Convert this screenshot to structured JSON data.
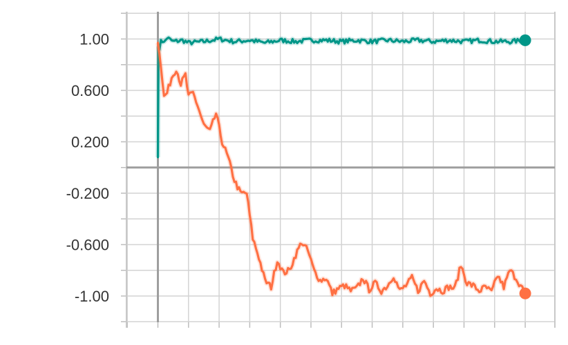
{
  "chart_data": {
    "type": "line",
    "title": "",
    "xlabel": "",
    "ylabel": "",
    "xlim": [
      -1,
      13
    ],
    "ylim": [
      -1.2,
      1.2
    ],
    "y_ticks": [
      1.0,
      0.6,
      0.2,
      -0.2,
      -0.6,
      -1.0
    ],
    "y_tick_labels": [
      "1.00",
      "0.600",
      "0.200",
      "-0.200",
      "-0.600",
      "-1.00"
    ],
    "grid": true,
    "legend": "none",
    "series": [
      {
        "color": "#009688",
        "x": [
          0,
          0.02,
          0.05,
          0.1,
          0.2,
          0.3,
          0.5,
          0.8,
          1,
          1.5,
          2,
          2.5,
          3,
          3.5,
          4,
          4.5,
          5,
          5.5,
          6,
          6.5,
          7,
          7.5,
          8,
          8.5,
          9,
          9.5,
          10,
          10.5,
          11,
          11.5,
          12
        ],
        "y": [
          0.08,
          0.95,
          0.9,
          1.0,
          0.97,
          1.01,
          0.98,
          0.99,
          0.97,
          0.98,
          1.0,
          0.98,
          0.99,
          0.97,
          0.99,
          0.98,
          0.99,
          0.99,
          0.98,
          0.99,
          0.98,
          0.99,
          0.98,
          0.99,
          0.98,
          0.99,
          0.98,
          0.99,
          0.98,
          0.98,
          0.99
        ]
      },
      {
        "color": "#ff7043",
        "x": [
          0,
          0.05,
          0.1,
          0.2,
          0.3,
          0.45,
          0.6,
          0.75,
          0.9,
          1,
          1.15,
          1.3,
          1.5,
          1.7,
          1.9,
          2.1,
          2.3,
          2.5,
          2.7,
          2.9,
          3.1,
          3.3,
          3.5,
          3.7,
          3.9,
          4.1,
          4.3,
          4.5,
          4.7,
          4.9,
          5.1,
          5.3,
          5.5,
          5.7,
          5.9,
          6.1,
          6.3,
          6.5,
          6.7,
          6.9,
          7.1,
          7.3,
          7.5,
          7.7,
          7.9,
          8.1,
          8.3,
          8.5,
          8.7,
          8.9,
          9.1,
          9.3,
          9.5,
          9.7,
          9.9,
          10.1,
          10.3,
          10.5,
          10.7,
          10.9,
          11.1,
          11.3,
          11.5,
          11.7,
          11.9,
          12
        ],
        "y": [
          0.97,
          0.9,
          0.8,
          0.55,
          0.58,
          0.7,
          0.77,
          0.65,
          0.72,
          0.55,
          0.58,
          0.48,
          0.33,
          0.28,
          0.42,
          0.2,
          0.07,
          -0.1,
          -0.2,
          -0.2,
          -0.55,
          -0.7,
          -0.88,
          -0.93,
          -0.72,
          -0.82,
          -0.8,
          -0.68,
          -0.58,
          -0.65,
          -0.8,
          -0.88,
          -0.86,
          -0.98,
          -0.94,
          -0.92,
          -0.96,
          -0.94,
          -0.86,
          -0.95,
          -0.9,
          -0.96,
          -0.92,
          -0.84,
          -0.96,
          -0.92,
          -0.86,
          -0.96,
          -0.88,
          -0.98,
          -0.94,
          -0.96,
          -0.93,
          -0.94,
          -0.76,
          -0.9,
          -0.92,
          -0.96,
          -0.93,
          -0.97,
          -0.84,
          -0.93,
          -0.8,
          -0.86,
          -0.94,
          -0.98
        ]
      }
    ]
  }
}
